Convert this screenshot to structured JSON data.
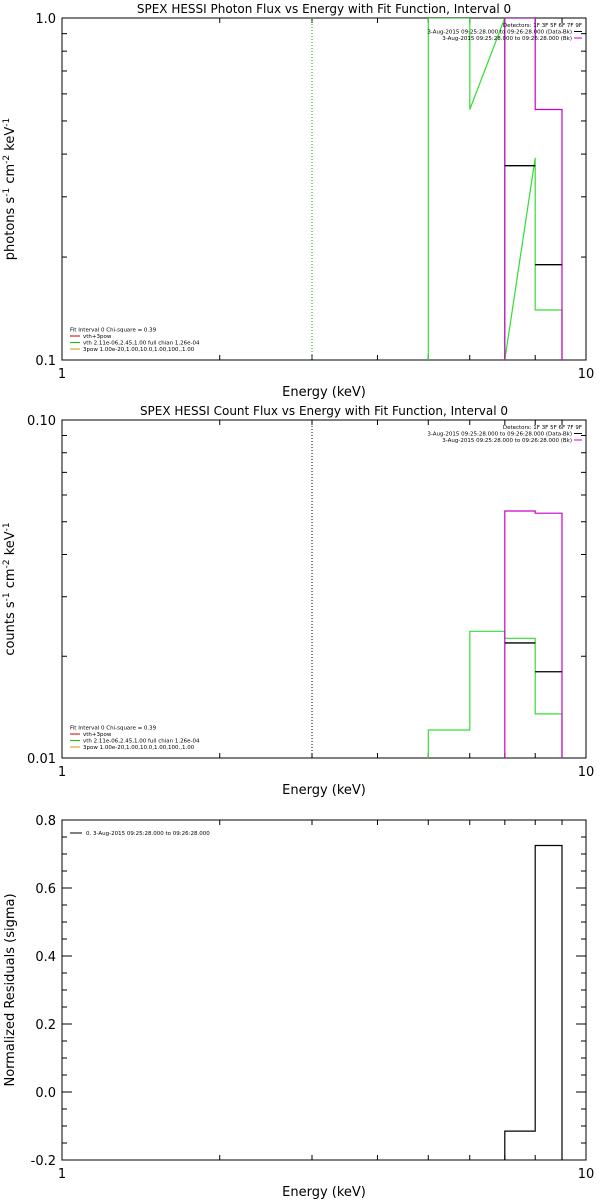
{
  "chart_data": [
    {
      "type": "line",
      "title": "SPEX HESSI Photon Flux vs Energy with Fit Function, Interval 0",
      "xlabel": "Energy (keV)",
      "ylabel_parts": [
        "photons s",
        "-1",
        " cm",
        "-2",
        " keV",
        "-1"
      ],
      "xscale": "log",
      "yscale": "log",
      "xlim": [
        1,
        10
      ],
      "ylim": [
        0.1,
        1.0
      ],
      "xticklabels": [
        "1",
        "10"
      ],
      "yticklabels": [
        "0.1",
        "1.0"
      ],
      "legend_topright": [
        {
          "text": "Detectors: 1F 3F 5F 6F 7F 9F",
          "color": ""
        },
        {
          "text": "3-Aug-2015 09:25:28.000 to 09:26:28.000 (Data-Bk)",
          "color": "#000000"
        },
        {
          "text": "3-Aug-2015 09:25:28.000 to 09:26:28.000 (Bk)",
          "color": "#cc00cc"
        }
      ],
      "legend_bottomleft": [
        {
          "text": "Fit Interval 0   Chi-square = 0.39",
          "color": ""
        },
        {
          "text": "vth+3pow",
          "color": "#cc0000"
        },
        {
          "text": "vth 2.11e-06,2.45,1.00  full chian 1.26e-04",
          "color": "#00cc00"
        },
        {
          "text": "3pow 1.00e-20,1.00,10.0,1.00,100.,1.00",
          "color": "#cc9900"
        }
      ],
      "vline": {
        "x": 3.0,
        "color": "#00aa00",
        "style": "dotted"
      },
      "series": [
        {
          "color": "#33dd33",
          "style": "step",
          "x": [
            5.0,
            5.0,
            6.0,
            6.0,
            7.0,
            7.0,
            8.0,
            8.0,
            9.0,
            9.0
          ],
          "y": [
            0.1,
            1.0,
            1.0,
            0.54,
            1.0,
            0.1,
            0.39,
            0.14,
            0.14,
            0.1
          ]
        },
        {
          "color": "#cc00cc",
          "style": "step",
          "x": [
            7.0,
            7.0,
            8.0,
            8.0,
            9.0,
            9.0
          ],
          "y": [
            0.1,
            1.0,
            1.0,
            0.54,
            0.54,
            0.1
          ]
        },
        {
          "color": "#000000",
          "style": "segments",
          "segments": [
            [
              7.0,
              8.0,
              0.37
            ],
            [
              8.0,
              9.0,
              0.19
            ]
          ]
        }
      ]
    },
    {
      "type": "line",
      "title": "SPEX HESSI Count Flux vs Energy with Fit Function, Interval 0",
      "xlabel": "Energy (keV)",
      "ylabel_parts": [
        "counts s",
        "-1",
        " cm",
        "-2",
        " keV",
        "-1"
      ],
      "xscale": "log",
      "yscale": "log",
      "xlim": [
        1,
        10
      ],
      "ylim": [
        0.01,
        0.1
      ],
      "xticklabels": [
        "1",
        "10"
      ],
      "yticklabels": [
        "0.01",
        "0.10"
      ],
      "legend_topright": [
        {
          "text": "Detectors: 1F 3F 5F 6F 7F 9F",
          "color": ""
        },
        {
          "text": "3-Aug-2015 09:25:28.000 to 09:26:28.000 (Data-Bk)",
          "color": "#000000"
        },
        {
          "text": "3-Aug-2015 09:25:28.000 to 09:26:28.000 (Bk)",
          "color": "#cc00cc"
        }
      ],
      "legend_bottomleft": [
        {
          "text": "Fit Interval 0   Chi-square = 0.39",
          "color": ""
        },
        {
          "text": "vth+3pow",
          "color": "#cc0000"
        },
        {
          "text": "vth 2.11e-06,2.45,1.00  full chian 1.26e-04",
          "color": "#00cc00"
        },
        {
          "text": "3pow 1.00e-20,1.00,10.0,1.00,100.,1.00",
          "color": "#cc9900"
        }
      ],
      "vline": {
        "x": 3.0,
        "color": "#000000",
        "style": "dotted"
      },
      "series": [
        {
          "color": "#33dd33",
          "style": "step",
          "x": [
            5.0,
            5.0,
            6.0,
            6.0,
            7.0,
            7.0,
            8.0,
            8.0,
            9.0,
            9.0
          ],
          "y": [
            0.01,
            0.0121,
            0.0121,
            0.0237,
            0.0237,
            0.0226,
            0.0226,
            0.0135,
            0.0135,
            0.01
          ]
        },
        {
          "color": "#cc00cc",
          "style": "step",
          "x": [
            7.0,
            7.0,
            8.0,
            8.0,
            9.0,
            9.0
          ],
          "y": [
            0.01,
            0.0538,
            0.0538,
            0.053,
            0.053,
            0.01
          ]
        },
        {
          "color": "#000000",
          "style": "segments",
          "segments": [
            [
              7.0,
              8.0,
              0.0219
            ],
            [
              8.0,
              9.0,
              0.018
            ]
          ]
        }
      ]
    },
    {
      "type": "line",
      "title": "",
      "xlabel": "Energy (keV)",
      "ylabel": "Normalized Residuals (sigma)",
      "xscale": "log",
      "yscale": "linear",
      "xlim": [
        1,
        10
      ],
      "ylim": [
        -0.2,
        0.8
      ],
      "xticklabels": [
        "1",
        "10"
      ],
      "yticks": [
        -0.2,
        0.0,
        0.2,
        0.4,
        0.6,
        0.8
      ],
      "yticklabels": [
        "-0.2",
        "0.0",
        "0.2",
        "0.4",
        "0.6",
        "0.8"
      ],
      "legend_topleft": [
        {
          "text": "0. 3-Aug-2015 09:25:28.000 to 09:26:28.000",
          "color": "#000000"
        }
      ],
      "series": [
        {
          "color": "#000000",
          "style": "step",
          "x": [
            7.0,
            7.0,
            8.0,
            8.0,
            9.0,
            9.0
          ],
          "y": [
            -0.2,
            -0.115,
            -0.115,
            0.725,
            0.725,
            -0.2
          ]
        }
      ]
    }
  ]
}
